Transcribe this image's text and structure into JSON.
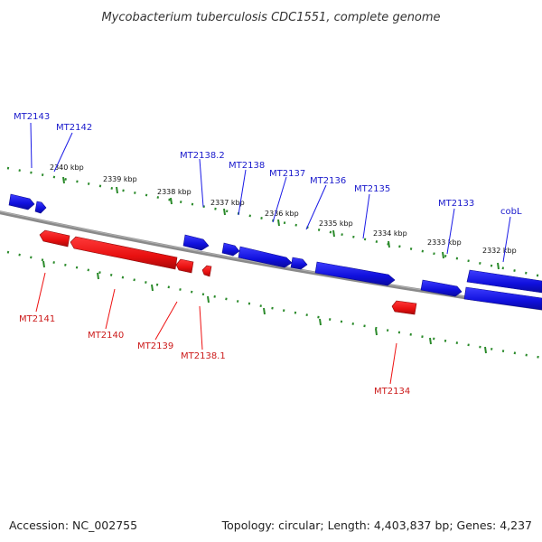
{
  "title": "Mycobacterium tuberculosis CDC1551, complete genome",
  "accession": "Accession: NC_002755",
  "topology": "Topology: circular; Length: 4,403,837 bp; Genes: 4,237",
  "colors": {
    "forward": "#1a1ae6",
    "reverse": "#ee1111",
    "backbone": "#808080",
    "ruler": "#228b22"
  },
  "ruler_labels": [
    "2340 kbp",
    "2339 kbp",
    "2338 kbp",
    "2337 kbp",
    "2336 kbp",
    "2335 kbp",
    "2334 kbp",
    "2333 kbp",
    "2332 kbp"
  ],
  "forward_genes": [
    "MT2143",
    "MT2142",
    "MT2138.2",
    "MT2138",
    "MT2137",
    "MT2136",
    "MT2135",
    "MT2133",
    "cobL"
  ],
  "reverse_genes": [
    "MT2141",
    "MT2140",
    "MT2139",
    "MT2138.1",
    "MT2134"
  ]
}
